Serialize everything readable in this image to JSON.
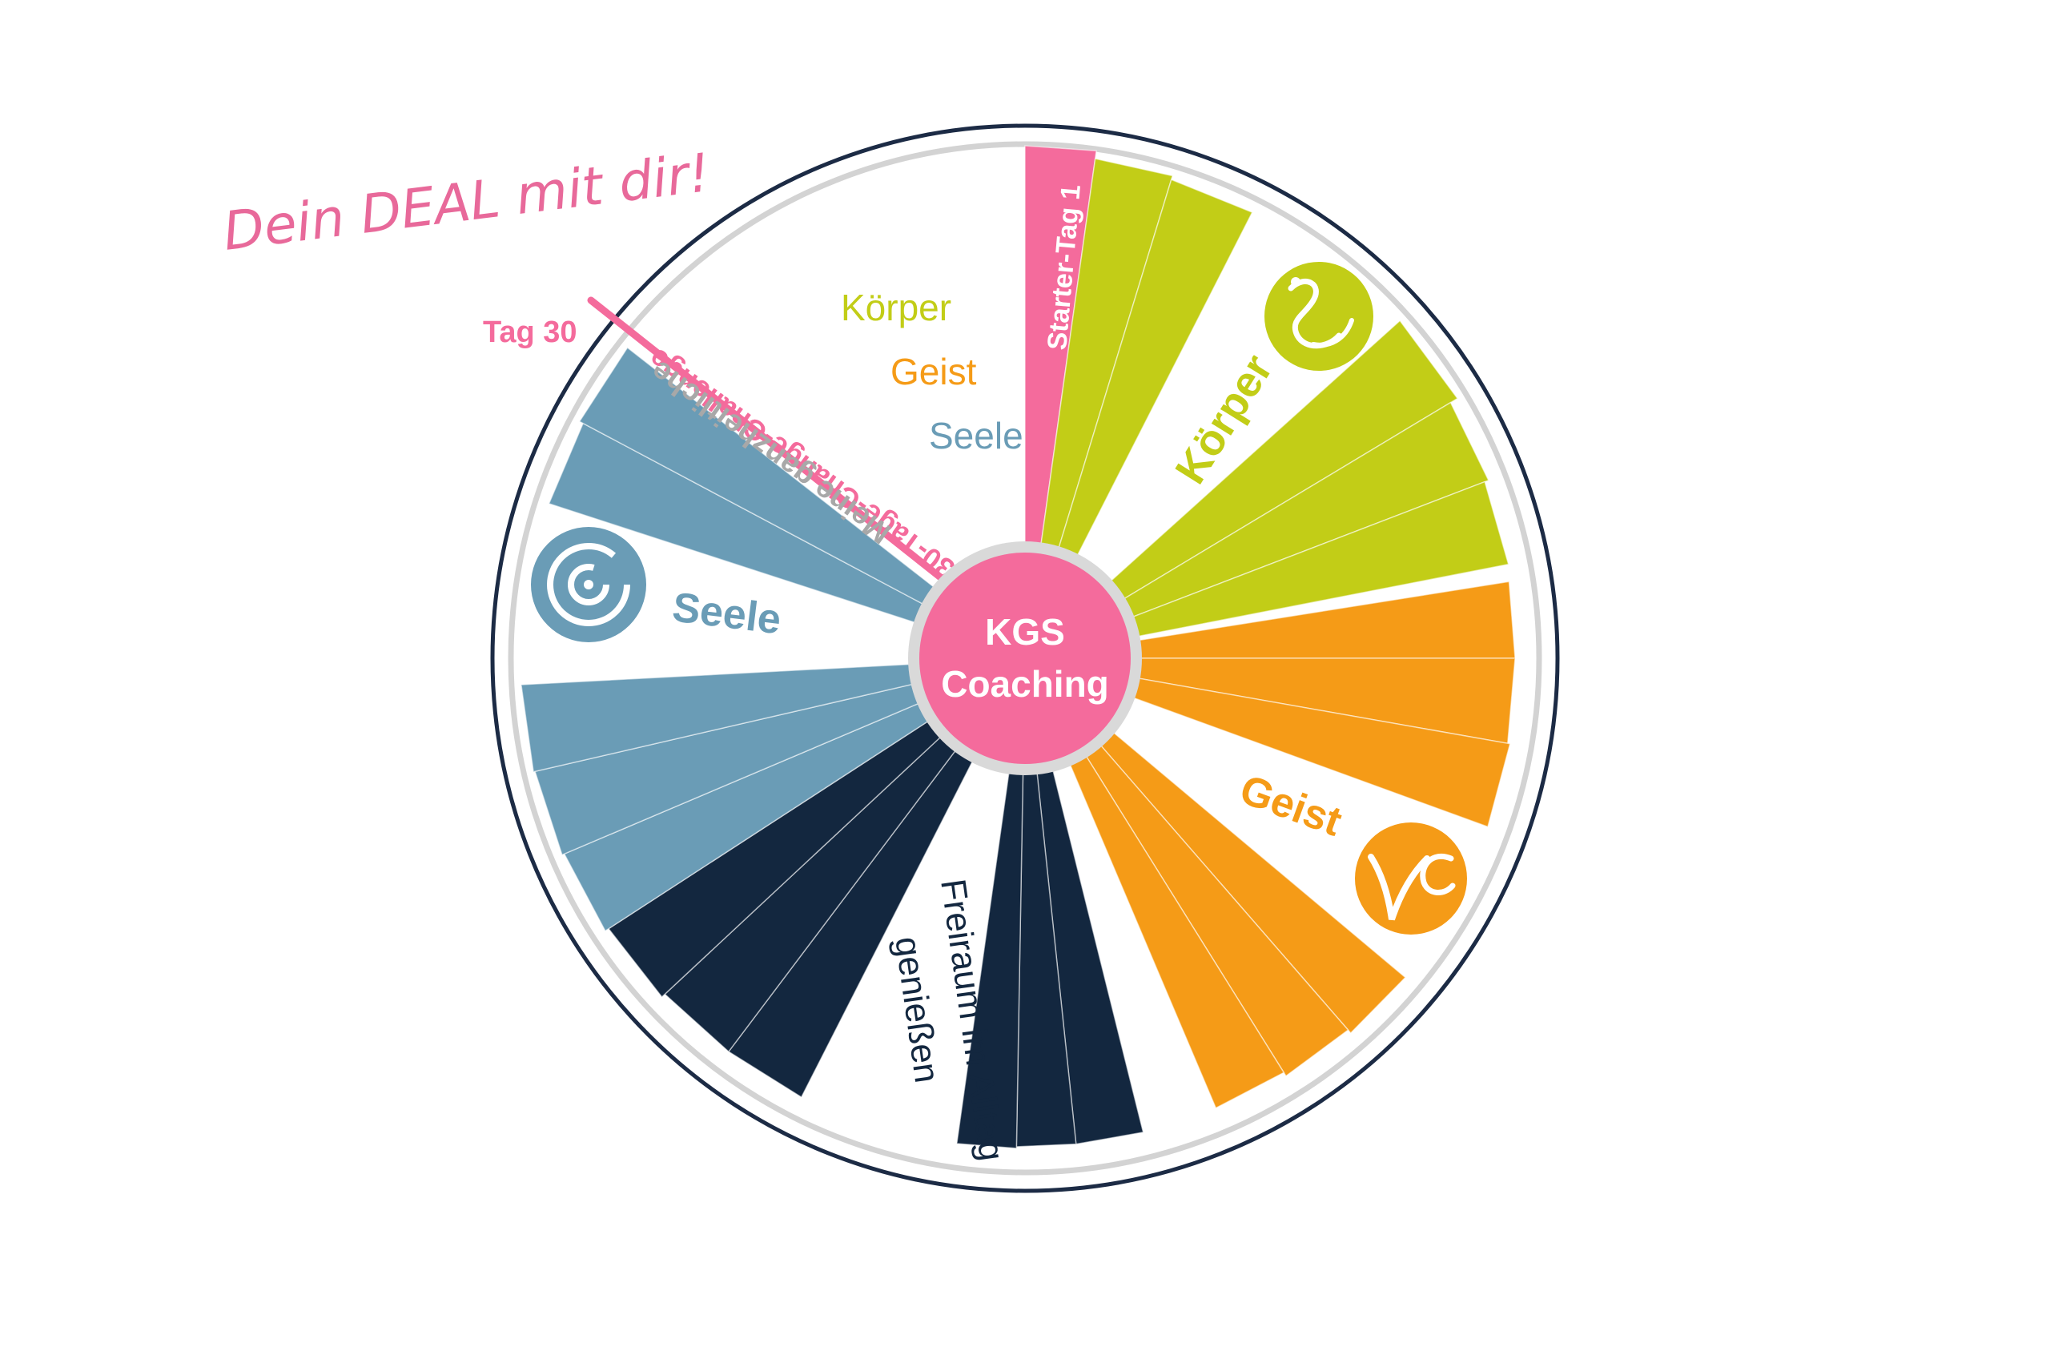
{
  "headline": "Dein DEAL mit dir!",
  "day30_label": "Tag 30",
  "start_label": "Starter-Tag 1",
  "center": {
    "line1": "KGS",
    "line2": "Coaching"
  },
  "challenge_title": "30-Tage-Change-Challenge",
  "challenge_subtitle": "Meine ganzheitliche",
  "legend": [
    {
      "label": "Körper",
      "color": "#c2cd17"
    },
    {
      "label": "Geist",
      "color": "#f59b17"
    },
    {
      "label": "Seele",
      "color": "#6a9cb6"
    }
  ],
  "categories": [
    {
      "key": "koerper",
      "label": "Körper",
      "color": "#c2cd17",
      "icon": "swan-icon"
    },
    {
      "key": "geist",
      "label": "Geist",
      "color": "#f59b17",
      "icon": "vc-brush-icon"
    },
    {
      "key": "seele",
      "label": "Seele",
      "color": "#6a9cb6",
      "icon": "spiral-icon"
    }
  ],
  "freiraum": {
    "line1": "Freiraum im Alltag",
    "line2": "genießen"
  },
  "colors": {
    "pink": "#f46b9c",
    "navy": "#13273f",
    "rim": "#1c2b45",
    "ring": "#d3d3d3",
    "subtitle_gray": "#a8a8a8"
  }
}
